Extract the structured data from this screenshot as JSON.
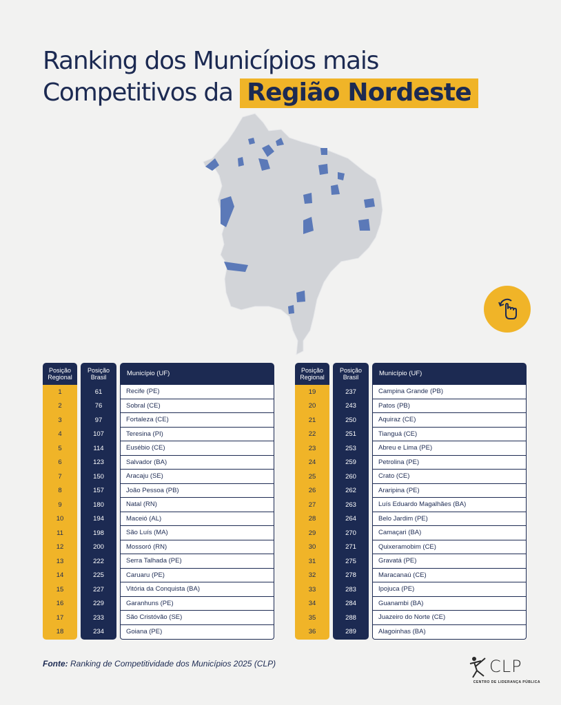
{
  "title": {
    "line1": "Ranking dos Municípios mais",
    "line2_prefix": "Competitivos da ",
    "line2_highlight": "Região Nordeste"
  },
  "colors": {
    "navy": "#1c2a52",
    "yellow": "#f0b428",
    "map_gray": "#d2d4d8",
    "map_blue": "#5b79b8"
  },
  "swipe_icon": "hand-swipe-icon",
  "table_headers": {
    "regional": "Posição Regional",
    "brasil": "Posição Brasil",
    "municipio": "Município (UF)"
  },
  "left_rows": [
    {
      "reg": "1",
      "br": "61",
      "mun": "Recife (PE)"
    },
    {
      "reg": "2",
      "br": "76",
      "mun": "Sobral (CE)"
    },
    {
      "reg": "3",
      "br": "97",
      "mun": "Fortaleza (CE)"
    },
    {
      "reg": "4",
      "br": "107",
      "mun": "Teresina (PI)"
    },
    {
      "reg": "5",
      "br": "114",
      "mun": "Eusébio (CE)"
    },
    {
      "reg": "6",
      "br": "123",
      "mun": "Salvador (BA)"
    },
    {
      "reg": "7",
      "br": "150",
      "mun": "Aracaju (SE)"
    },
    {
      "reg": "8",
      "br": "157",
      "mun": "João Pessoa (PB)"
    },
    {
      "reg": "9",
      "br": "180",
      "mun": "Natal (RN)"
    },
    {
      "reg": "10",
      "br": "194",
      "mun": "Maceió (AL)"
    },
    {
      "reg": "11",
      "br": "198",
      "mun": "São Luís (MA)"
    },
    {
      "reg": "12",
      "br": "200",
      "mun": "Mossoró (RN)"
    },
    {
      "reg": "13",
      "br": "222",
      "mun": "Serra Talhada (PE)"
    },
    {
      "reg": "14",
      "br": "225",
      "mun": "Caruaru (PE)"
    },
    {
      "reg": "15",
      "br": "227",
      "mun": "Vitória da Conquista (BA)"
    },
    {
      "reg": "16",
      "br": "229",
      "mun": "Garanhuns (PE)"
    },
    {
      "reg": "17",
      "br": "233",
      "mun": "São Cristóvão (SE)"
    },
    {
      "reg": "18",
      "br": "234",
      "mun": "Goiana (PE)"
    }
  ],
  "right_rows": [
    {
      "reg": "19",
      "br": "237",
      "mun": "Campina Grande (PB)"
    },
    {
      "reg": "20",
      "br": "243",
      "mun": "Patos (PB)"
    },
    {
      "reg": "21",
      "br": "250",
      "mun": "Aquiraz (CE)"
    },
    {
      "reg": "22",
      "br": "251",
      "mun": "Tianguá (CE)"
    },
    {
      "reg": "23",
      "br": "253",
      "mun": "Abreu e Lima (PE)"
    },
    {
      "reg": "24",
      "br": "259",
      "mun": "Petrolina (PE)"
    },
    {
      "reg": "25",
      "br": "260",
      "mun": "Crato (CE)"
    },
    {
      "reg": "26",
      "br": "262",
      "mun": "Araripina (PE)"
    },
    {
      "reg": "27",
      "br": "263",
      "mun": "Luís Eduardo Magalhães (BA)"
    },
    {
      "reg": "28",
      "br": "264",
      "mun": "Belo Jardim (PE)"
    },
    {
      "reg": "29",
      "br": "270",
      "mun": "Camaçari (BA)"
    },
    {
      "reg": "30",
      "br": "271",
      "mun": "Quixeramobim (CE)"
    },
    {
      "reg": "31",
      "br": "275",
      "mun": "Gravatá (PE)"
    },
    {
      "reg": "32",
      "br": "278",
      "mun": "Maracanaú (CE)"
    },
    {
      "reg": "33",
      "br": "283",
      "mun": "Ipojuca (PE)"
    },
    {
      "reg": "34",
      "br": "284",
      "mun": "Guanambi (BA)"
    },
    {
      "reg": "35",
      "br": "288",
      "mun": "Juazeiro do Norte (CE)"
    },
    {
      "reg": "36",
      "br": "289",
      "mun": "Alagoinhas (BA)"
    }
  ],
  "source": {
    "label": "Fonte:",
    "text": " Ranking de Competitividade dos Municípios 2025 (CLP)"
  },
  "logo": {
    "mark": "CLP",
    "subtitle": "CENTRO DE LIDERANÇA PÚBLICA"
  }
}
